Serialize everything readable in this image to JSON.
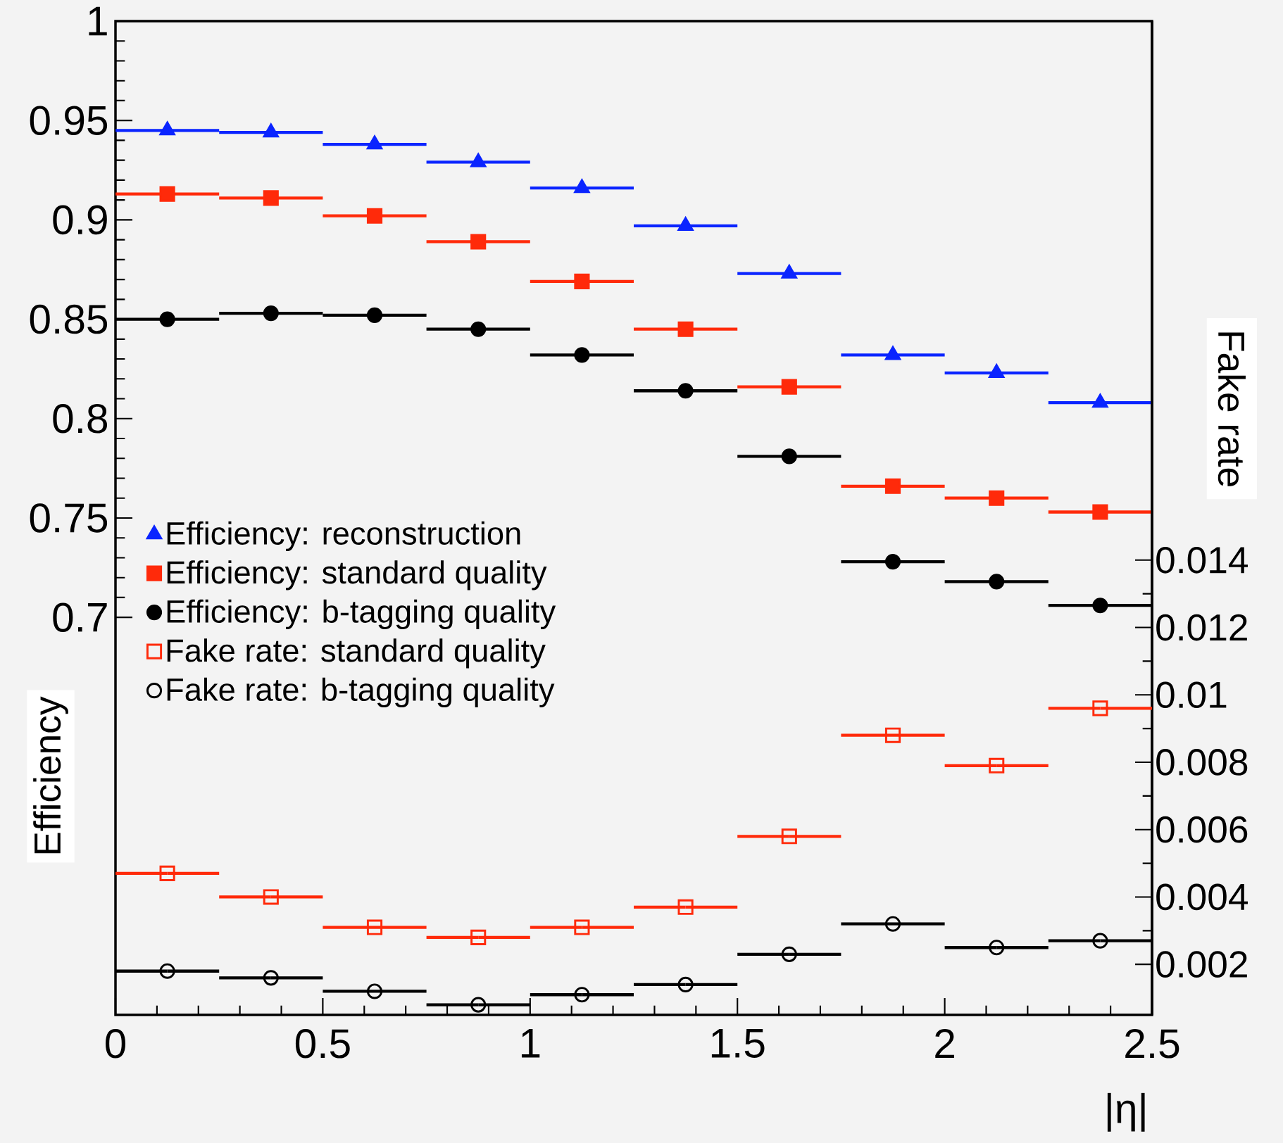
{
  "chart_data": {
    "type": "scatter",
    "x": [
      0.125,
      0.375,
      0.625,
      0.875,
      1.125,
      1.375,
      1.625,
      1.875,
      2.125,
      2.375
    ],
    "series": [
      {
        "name": "Efficiency: reconstruction",
        "color": "#0a24ff",
        "marker": "triangle",
        "values": [
          0.945,
          0.944,
          0.938,
          0.929,
          0.916,
          0.897,
          0.873,
          0.832,
          0.823,
          0.808
        ],
        "xerrors": [
          0.125,
          0.125,
          0.125,
          0.125,
          0.125,
          0.125,
          0.125,
          0.125,
          0.125,
          0.125
        ]
      },
      {
        "name": "Efficiency: standard quality",
        "color": "#ff2a0a",
        "marker": "square",
        "values": [
          0.913,
          0.911,
          0.902,
          0.889,
          0.869,
          0.845,
          0.816,
          0.766,
          0.76,
          0.753
        ],
        "xerrors": [
          0.125,
          0.125,
          0.125,
          0.125,
          0.125,
          0.125,
          0.125,
          0.125,
          0.125,
          0.125
        ]
      },
      {
        "name": "Efficiency: b-tagging quality",
        "color": "#000000",
        "marker": "circle",
        "values": [
          0.85,
          0.853,
          0.852,
          0.845,
          0.832,
          0.814,
          0.781,
          0.728,
          0.718,
          0.706
        ],
        "xerrors": [
          0.125,
          0.125,
          0.125,
          0.125,
          0.125,
          0.125,
          0.125,
          0.125,
          0.125,
          0.125
        ]
      },
      {
        "name": "Fake rate: standard quality",
        "color": "#ff2a0a",
        "marker": "square",
        "axis": "y2",
        "values": [
          0.0047,
          0.004,
          0.0031,
          0.0028,
          0.0031,
          0.0037,
          0.0058,
          0.0088,
          0.0079,
          0.0096
        ],
        "xerrors": [
          0.125,
          0.125,
          0.125,
          0.125,
          0.125,
          0.125,
          0.125,
          0.125,
          0.125,
          0.125
        ]
      },
      {
        "name": "Fake rate: b-tagging quality",
        "color": "#000000",
        "marker": "circle",
        "axis": "y2",
        "values": [
          0.0018,
          0.0016,
          0.0012,
          0.0008,
          0.0011,
          0.0014,
          0.0023,
          0.0032,
          0.0025,
          0.0027
        ],
        "xerrors": [
          0.125,
          0.125,
          0.125,
          0.125,
          0.125,
          0.125,
          0.125,
          0.125,
          0.125,
          0.125
        ]
      }
    ],
    "xlabel": "|η|",
    "ylabel": "Efficiency",
    "y2label": "Fake rate",
    "xlim": [
      0,
      2.5
    ],
    "xticks": [
      0,
      0.5,
      1,
      1.5,
      2,
      2.5
    ],
    "ylim": [
      0.5,
      1
    ],
    "yticks": [
      0.7,
      0.75,
      0.8,
      0.85,
      0.9,
      0.95,
      1
    ],
    "y2lim": [
      0.0005,
      0.03
    ],
    "y2ticks": [
      0.002,
      0.004,
      0.006,
      0.008,
      0.01,
      0.012,
      0.014
    ],
    "legend": "left"
  }
}
